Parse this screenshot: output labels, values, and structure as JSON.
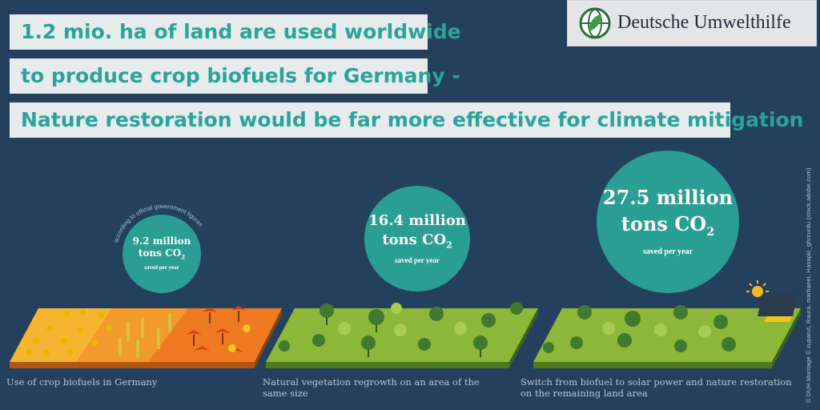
{
  "headline": {
    "line1": "1.2 mio. ha of land are used worldwide",
    "line2": "to produce crop biofuels for Germany -",
    "line3": "Nature restoration would be far more effective for climate mitigation"
  },
  "logo": {
    "text": "Deutsche Umwelthilfe"
  },
  "credit": "© DUH Montage © suparut, Raura, martiaeel, Hasapki_ghrzurdu (stock.adobe.com)",
  "panels": [
    {
      "value_line1": "9.2 million",
      "value_line2": "tons CO",
      "sub": "2",
      "saved": "saved per year",
      "note": "according to official government figures",
      "caption": "Use of crop biofuels in Germany"
    },
    {
      "value_line1": "16.4 million",
      "value_line2": "tons CO",
      "sub": "2",
      "saved": "saved per year",
      "caption": "Natural vegetation regrowth on an area of the same size"
    },
    {
      "value_line1": "27.5 million",
      "value_line2": "tons CO",
      "sub": "2",
      "saved": "saved per year",
      "caption": "Switch from biofuel to solar power and nature restoration on the remaining land area"
    }
  ],
  "colors": {
    "background": "#23415f",
    "banner_bg": "#e6ebed",
    "banner_text": "#2aa39a",
    "circle": "#2a9d94",
    "grass": "#8cb83a",
    "field_orange": "#f08a24"
  }
}
